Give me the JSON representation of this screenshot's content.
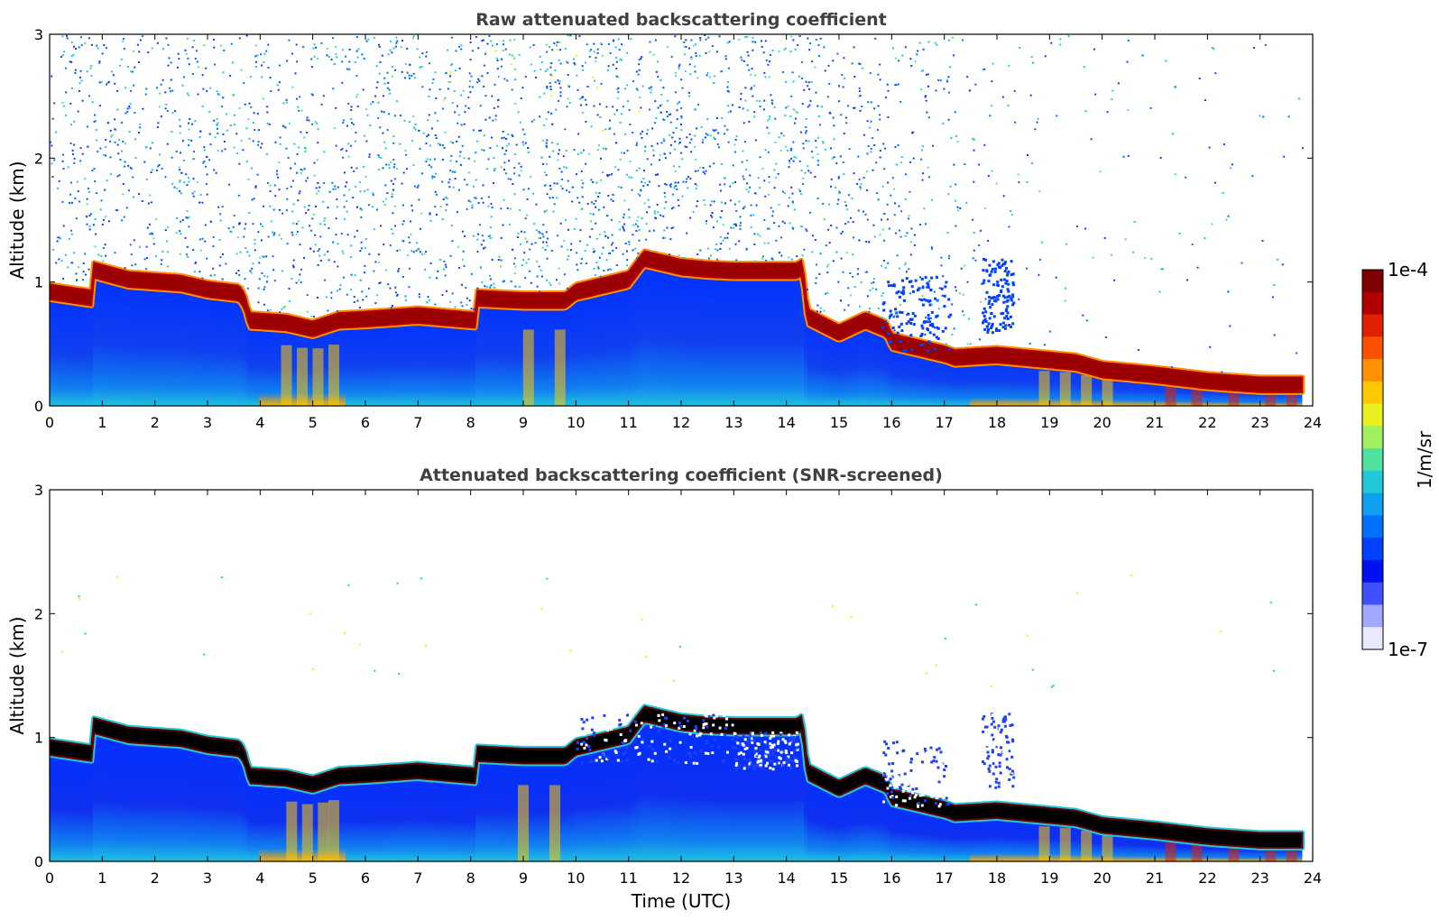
{
  "chart_data": [
    {
      "type": "heatmap",
      "title": "Raw attenuated backscattering coefficient",
      "xlabel": "",
      "ylabel": "Altitude (km)",
      "xlim": [
        0,
        24
      ],
      "ylim": [
        0,
        3
      ],
      "xticks": [
        "0",
        "1",
        "2",
        "3",
        "4",
        "5",
        "6",
        "7",
        "8",
        "9",
        "10",
        "11",
        "12",
        "13",
        "14",
        "15",
        "16",
        "17",
        "18",
        "19",
        "20",
        "21",
        "22",
        "23",
        "24"
      ],
      "yticks": [
        "0",
        "1",
        "2",
        "3"
      ],
      "layer_top": {
        "time": [
          0,
          0.8,
          0.8,
          1.5,
          2.5,
          3.0,
          3.6,
          3.7,
          3.8,
          4.5,
          5.0,
          5.5,
          6.0,
          7.0,
          8.1,
          8.1,
          9.0,
          9.8,
          10.0,
          10.5,
          11.0,
          11.3,
          11.7,
          12.0,
          12.5,
          13.0,
          14.2,
          14.3,
          14.4,
          15.0,
          15.5,
          15.9,
          16.0,
          16.5,
          17.0,
          17.2,
          18.0,
          19.0,
          19.5,
          20.0,
          21.0,
          22.0,
          23.0,
          23.8
        ],
        "height_km": [
          0.95,
          0.9,
          1.13,
          1.05,
          1.02,
          0.97,
          0.94,
          0.88,
          0.72,
          0.7,
          0.65,
          0.72,
          0.73,
          0.76,
          0.72,
          0.9,
          0.88,
          0.88,
          0.95,
          1.0,
          1.05,
          1.22,
          1.18,
          1.15,
          1.13,
          1.12,
          1.12,
          1.15,
          0.75,
          0.62,
          0.72,
          0.65,
          0.55,
          0.5,
          0.45,
          0.42,
          0.44,
          0.4,
          0.38,
          0.32,
          0.28,
          0.23,
          0.2,
          0.2
        ]
      },
      "noise_fade": {
        "time": [
          0,
          3,
          6,
          10,
          13,
          15,
          16,
          17,
          18,
          19,
          20,
          22,
          24
        ],
        "intensity": [
          0.55,
          0.75,
          0.8,
          0.95,
          0.85,
          0.8,
          0.6,
          0.45,
          0.2,
          0.12,
          0.1,
          0.08,
          0.05
        ]
      }
    },
    {
      "type": "heatmap",
      "title": "Attenuated backscattering coefficient (SNR-screened)",
      "xlabel": "Time (UTC)",
      "ylabel": "Altitude (km)",
      "xlim": [
        0,
        24
      ],
      "ylim": [
        0,
        3
      ],
      "xticks": [
        "0",
        "1",
        "2",
        "3",
        "4",
        "5",
        "6",
        "7",
        "8",
        "9",
        "10",
        "11",
        "12",
        "13",
        "14",
        "15",
        "16",
        "17",
        "18",
        "19",
        "20",
        "21",
        "22",
        "23",
        "24"
      ],
      "yticks": [
        "0",
        "1",
        "2",
        "3"
      ]
    }
  ],
  "colorbar": {
    "max_label": "1e-4",
    "min_label": "1e-7",
    "unit_label": "1/m/sr",
    "colors": [
      "#7f0000",
      "#b00000",
      "#e02000",
      "#ff5000",
      "#ff9000",
      "#ffc800",
      "#e8f020",
      "#a0f060",
      "#50e0a0",
      "#20c8d8",
      "#10a0f0",
      "#0070ff",
      "#0040ff",
      "#0010f0",
      "#4050ff",
      "#a0a8ff",
      "#e8e8ff"
    ]
  }
}
